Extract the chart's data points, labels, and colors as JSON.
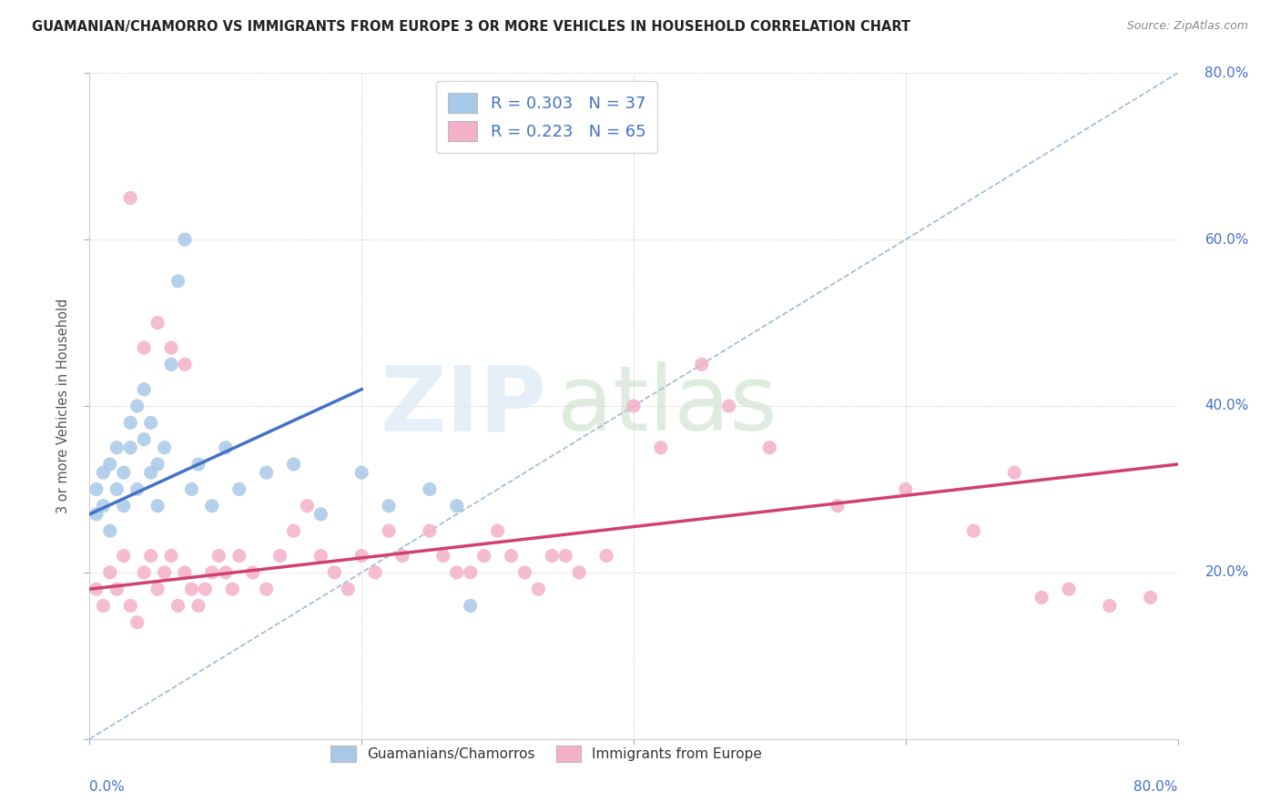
{
  "title": "GUAMANIAN/CHAMORRO VS IMMIGRANTS FROM EUROPE 3 OR MORE VEHICLES IN HOUSEHOLD CORRELATION CHART",
  "source": "Source: ZipAtlas.com",
  "ylabel": "3 or more Vehicles in Household",
  "legend_label1": "Guamanians/Chamorros",
  "legend_label2": "Immigrants from Europe",
  "R1": 0.303,
  "N1": 37,
  "R2": 0.223,
  "N2": 65,
  "color_blue": "#a8c8e8",
  "color_pink": "#f4b0c8",
  "color_blue_text": "#4472c4",
  "color_pink_text": "#d04070",
  "xlim": [
    0,
    80
  ],
  "ylim": [
    0,
    80
  ],
  "grid_color": "#cccccc",
  "trendline_color_blue": "#4472c4",
  "trendline_color_pink": "#d04070",
  "trendline_color_dashed": "#a0b8d8",
  "blue_scatter_x": [
    0.5,
    0.5,
    1.0,
    1.0,
    1.5,
    1.5,
    2.0,
    2.0,
    2.5,
    2.5,
    3.0,
    3.0,
    3.5,
    3.5,
    4.0,
    4.0,
    4.5,
    4.5,
    5.0,
    5.0,
    5.5,
    6.0,
    6.5,
    7.0,
    7.5,
    8.0,
    9.0,
    10.0,
    11.0,
    13.0,
    15.0,
    17.0,
    20.0,
    22.0,
    25.0,
    27.0,
    28.0
  ],
  "blue_scatter_y": [
    27,
    30,
    28,
    32,
    25,
    33,
    30,
    35,
    32,
    28,
    35,
    38,
    40,
    30,
    42,
    36,
    32,
    38,
    33,
    28,
    35,
    45,
    55,
    60,
    30,
    33,
    28,
    35,
    30,
    32,
    33,
    27,
    32,
    28,
    30,
    28,
    16
  ],
  "pink_scatter_x": [
    0.5,
    1.0,
    1.5,
    2.0,
    2.5,
    3.0,
    3.5,
    4.0,
    4.5,
    5.0,
    5.5,
    6.0,
    6.5,
    7.0,
    7.5,
    8.0,
    8.5,
    9.0,
    9.5,
    10.0,
    10.5,
    11.0,
    12.0,
    13.0,
    14.0,
    15.0,
    16.0,
    17.0,
    18.0,
    19.0,
    20.0,
    21.0,
    22.0,
    23.0,
    25.0,
    26.0,
    27.0,
    28.0,
    29.0,
    30.0,
    31.0,
    32.0,
    33.0,
    34.0,
    35.0,
    36.0,
    38.0,
    40.0,
    42.0,
    45.0,
    47.0,
    50.0,
    55.0,
    60.0,
    65.0,
    68.0,
    70.0,
    72.0,
    75.0,
    78.0,
    3.0,
    4.0,
    5.0,
    6.0,
    7.0
  ],
  "pink_scatter_y": [
    18,
    16,
    20,
    18,
    22,
    16,
    14,
    20,
    22,
    18,
    20,
    22,
    16,
    20,
    18,
    16,
    18,
    20,
    22,
    20,
    18,
    22,
    20,
    18,
    22,
    25,
    28,
    22,
    20,
    18,
    22,
    20,
    25,
    22,
    25,
    22,
    20,
    20,
    22,
    25,
    22,
    20,
    18,
    22,
    22,
    20,
    22,
    40,
    35,
    45,
    40,
    35,
    28,
    30,
    25,
    32,
    17,
    18,
    16,
    17,
    65,
    47,
    50,
    47,
    45
  ],
  "blue_trend_x": [
    0,
    20
  ],
  "blue_trend_y": [
    27,
    42
  ],
  "pink_trend_x": [
    0,
    80
  ],
  "pink_trend_y": [
    18,
    33
  ]
}
